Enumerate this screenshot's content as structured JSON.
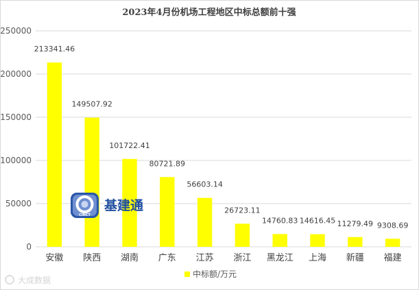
{
  "chart_data": {
    "type": "bar",
    "title": "2023年4月份机场工程地区中标总额前十强",
    "categories": [
      "安徽",
      "陕西",
      "湖南",
      "广东",
      "江苏",
      "浙江",
      "黑龙江",
      "上海",
      "新疆",
      "福建"
    ],
    "series": [
      {
        "name": "中标额/万元",
        "values": [
          213341.46,
          149507.92,
          101722.41,
          80721.89,
          56603.14,
          26723.11,
          14760.83,
          14616.45,
          11279.49,
          9308.69
        ]
      }
    ],
    "data_labels": [
      "213341.46",
      "149507.92",
      "101722.41",
      "80721.89",
      "56603.14",
      "26723.11",
      "14760.83",
      "14616.45",
      "11279.49",
      "9308.69"
    ],
    "yticks": [
      0,
      50000,
      100000,
      150000,
      200000,
      250000
    ],
    "ylim": [
      0,
      250000
    ],
    "xlabel": "",
    "ylabel": "",
    "grid": true,
    "legend_position": "bottom",
    "colors": {
      "bar": "#ffff00",
      "grid": "#d9d9d9"
    }
  },
  "logo": {
    "text": "基建通",
    "badge": "CINCT"
  },
  "watermark": "大成数据"
}
